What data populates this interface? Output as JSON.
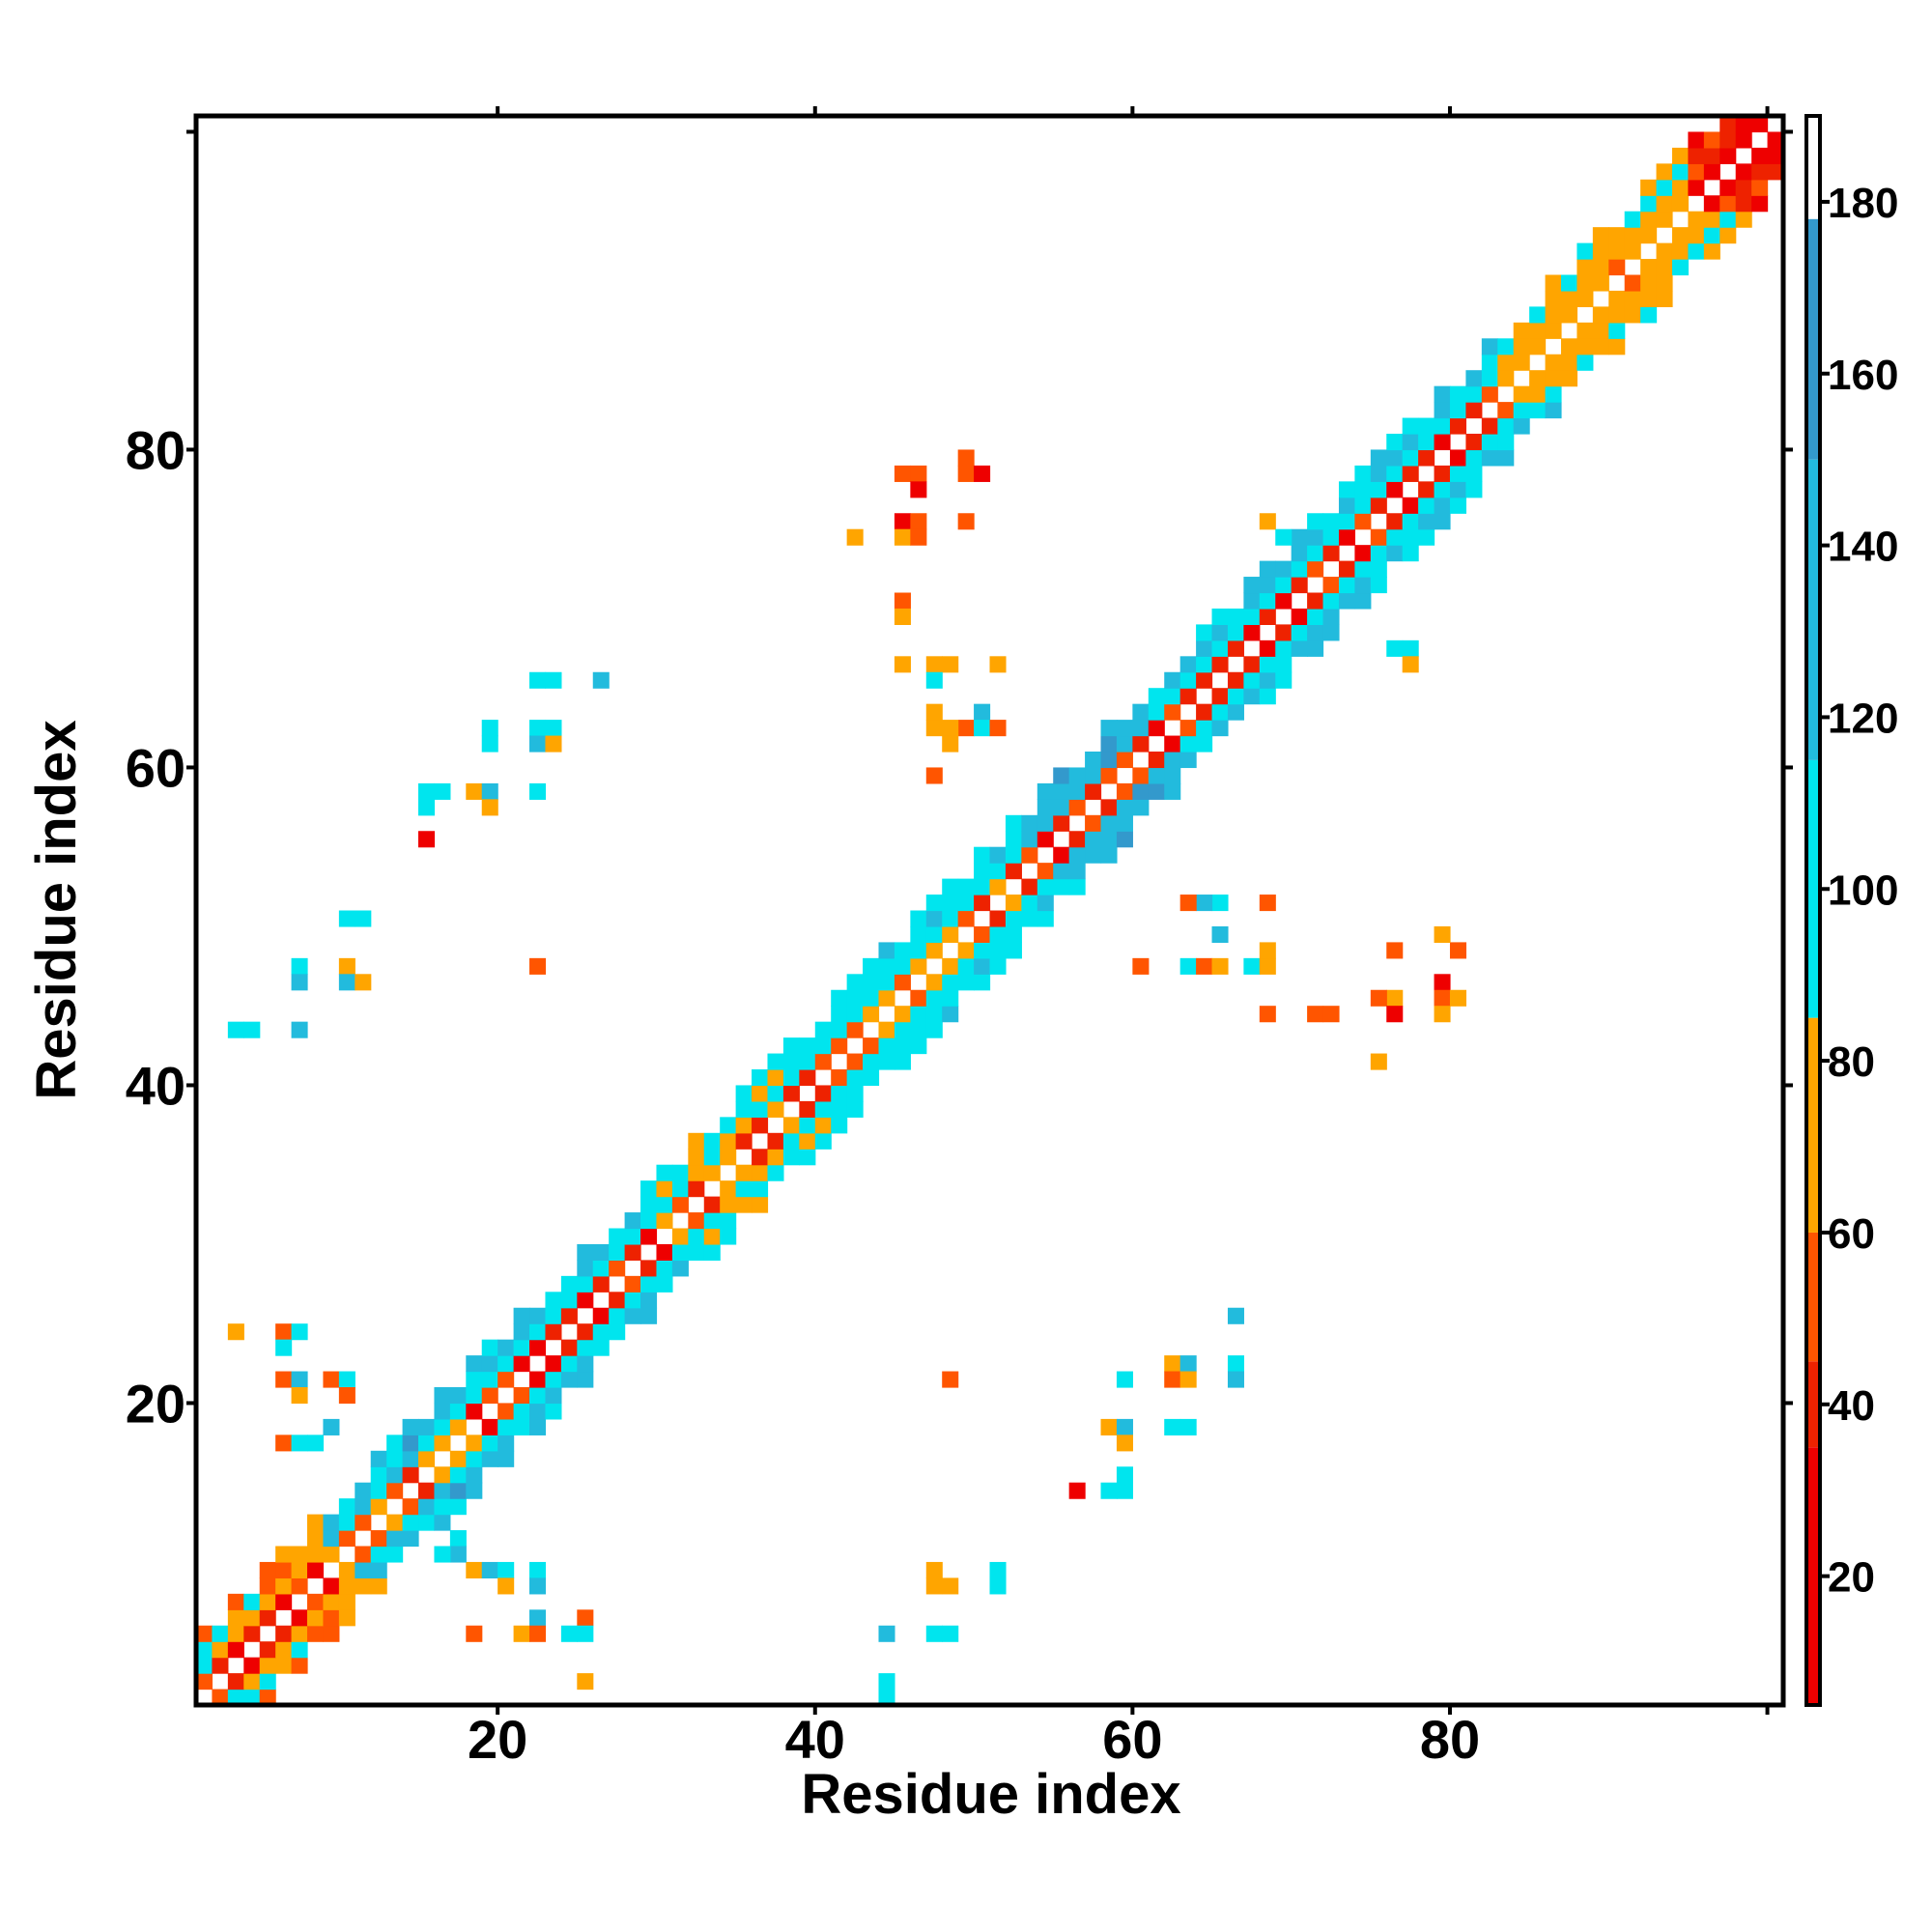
{
  "chart_data": {
    "type": "heatmap",
    "title": "",
    "xlabel": "Residue index",
    "ylabel": "Residue index",
    "xlim": [
      1,
      101
    ],
    "ylim": [
      1,
      101
    ],
    "x_ticks": [
      20,
      40,
      60,
      80
    ],
    "y_ticks": [
      20,
      40,
      60,
      80
    ],
    "colorbar": {
      "range": [
        5,
        190
      ],
      "ticks": [
        20,
        40,
        60,
        80,
        100,
        120,
        140,
        160,
        180
      ],
      "bands": [
        {
          "from": 5,
          "to": 35,
          "color": "#ee0000"
        },
        {
          "from": 35,
          "to": 45,
          "color": "#ee2200"
        },
        {
          "from": 45,
          "to": 60,
          "color": "#ff5500"
        },
        {
          "from": 60,
          "to": 85,
          "color": "#ffa500"
        },
        {
          "from": 85,
          "to": 115,
          "color": "#00e5ee"
        },
        {
          "from": 115,
          "to": 150,
          "color": "#22bbdd"
        },
        {
          "from": 150,
          "to": 178,
          "color": "#3399cc"
        },
        {
          "from": 178,
          "to": 190,
          "color": "#ffffff"
        }
      ]
    },
    "diagonal_bands": [
      {
        "from": 1,
        "to": 8,
        "near": [
          30,
          60
        ],
        "mid": [
          60,
          100
        ],
        "far": [
          45,
          110
        ]
      },
      {
        "from": 8,
        "to": 17,
        "near": [
          35,
          80
        ],
        "mid": [
          90,
          150
        ],
        "far": [
          100,
          155
        ]
      },
      {
        "from": 17,
        "to": 29,
        "near": [
          30,
          50
        ],
        "mid": [
          95,
          110
        ],
        "far": [
          100,
          130
        ]
      },
      {
        "from": 29,
        "to": 37,
        "near": [
          40,
          75
        ],
        "mid": [
          60,
          100
        ],
        "far": [
          60,
          110
        ]
      },
      {
        "from": 37,
        "to": 52,
        "near": [
          35,
          75
        ],
        "mid": [
          90,
          110
        ],
        "far": [
          80,
          120
        ]
      },
      {
        "from": 52,
        "to": 60,
        "near": [
          30,
          60
        ],
        "mid": [
          110,
          160
        ],
        "far": [
          120,
          160
        ]
      },
      {
        "from": 60,
        "to": 82,
        "near": [
          30,
          50
        ],
        "mid": [
          95,
          110
        ],
        "far": [
          100,
          130
        ]
      },
      {
        "from": 82,
        "to": 94,
        "near": [
          55,
          80
        ],
        "mid": [
          60,
          80
        ],
        "far": [
          70,
          100
        ]
      },
      {
        "from": 94,
        "to": 101,
        "near": [
          5,
          35
        ],
        "mid": [
          20,
          60
        ],
        "far": [
          30,
          60
        ]
      }
    ],
    "off_diagonal_contacts": [
      [
        26,
        65,
        142
      ],
      [
        22,
        65,
        105
      ],
      [
        23,
        65,
        105
      ],
      [
        22,
        62,
        85
      ],
      [
        23,
        62,
        105
      ],
      [
        22,
        61,
        125
      ],
      [
        23,
        61,
        80
      ],
      [
        19,
        62,
        100
      ],
      [
        19,
        61,
        100
      ],
      [
        15,
        58,
        100
      ],
      [
        16,
        58,
        100
      ],
      [
        15,
        57,
        100
      ],
      [
        18,
        58,
        60
      ],
      [
        19,
        58,
        120
      ],
      [
        19,
        57,
        70
      ],
      [
        22,
        58,
        100
      ],
      [
        15,
        55,
        10
      ],
      [
        10,
        50,
        100
      ],
      [
        11,
        50,
        100
      ],
      [
        7,
        47,
        100
      ],
      [
        7,
        46,
        120
      ],
      [
        10,
        47,
        70
      ],
      [
        10,
        46,
        120
      ],
      [
        11,
        46,
        80
      ],
      [
        22,
        47,
        45
      ],
      [
        3,
        43,
        100
      ],
      [
        4,
        43,
        100
      ],
      [
        7,
        43,
        125
      ],
      [
        45,
        78,
        50
      ],
      [
        46,
        78,
        50
      ],
      [
        46,
        77,
        10
      ],
      [
        49,
        79,
        55
      ],
      [
        49,
        78,
        45
      ],
      [
        50,
        78,
        10
      ],
      [
        45,
        75,
        10
      ],
      [
        46,
        75,
        50
      ],
      [
        45,
        74,
        70
      ],
      [
        46,
        74,
        50
      ],
      [
        42,
        74,
        60
      ],
      [
        49,
        75,
        45
      ],
      [
        45,
        70,
        50
      ],
      [
        45,
        69,
        70
      ],
      [
        45,
        66,
        60
      ],
      [
        47,
        66,
        70
      ],
      [
        48,
        66,
        70
      ],
      [
        51,
        66,
        60
      ],
      [
        47,
        65,
        110
      ],
      [
        50,
        63,
        130
      ],
      [
        47,
        63,
        60
      ],
      [
        49,
        62,
        50
      ],
      [
        50,
        62,
        100
      ],
      [
        48,
        62,
        60
      ],
      [
        47,
        62,
        70
      ],
      [
        48,
        61,
        80
      ],
      [
        51,
        62,
        50
      ],
      [
        47,
        59,
        45
      ],
      [
        68,
        75,
        70
      ],
      [
        69,
        74,
        100
      ],
      [
        76,
        67,
        100
      ],
      [
        77,
        67,
        100
      ],
      [
        77,
        66,
        80
      ],
      [
        68,
        51,
        45
      ],
      [
        65,
        51,
        100
      ],
      [
        64,
        51,
        130
      ],
      [
        63,
        51,
        50
      ],
      [
        67,
        47,
        100
      ],
      [
        68,
        47,
        60
      ],
      [
        68,
        48,
        70
      ],
      [
        76,
        48,
        45
      ],
      [
        80,
        48,
        50
      ],
      [
        79,
        49,
        60
      ],
      [
        79,
        46,
        10
      ],
      [
        76,
        45,
        60
      ],
      [
        75,
        45,
        50
      ],
      [
        79,
        45,
        50
      ],
      [
        80,
        45,
        60
      ],
      [
        76,
        44,
        10
      ],
      [
        79,
        44,
        60
      ],
      [
        68,
        44,
        45
      ],
      [
        71,
        44,
        50
      ],
      [
        72,
        44,
        45
      ],
      [
        75,
        41,
        60
      ],
      [
        65,
        49,
        125
      ],
      [
        60,
        47,
        45
      ],
      [
        63,
        47,
        100
      ],
      [
        64,
        47,
        45
      ],
      [
        65,
        47,
        70
      ],
      [
        3,
        24,
        70
      ],
      [
        6,
        24,
        50
      ],
      [
        7,
        24,
        100
      ],
      [
        6,
        23,
        100
      ],
      [
        6,
        21,
        50
      ],
      [
        7,
        21,
        125
      ],
      [
        7,
        20,
        70
      ],
      [
        9,
        21,
        50
      ],
      [
        10,
        21,
        100
      ],
      [
        10,
        20,
        50
      ],
      [
        6,
        17,
        45
      ],
      [
        7,
        17,
        100
      ],
      [
        8,
        17,
        100
      ],
      [
        9,
        18,
        125
      ],
      [
        66,
        25,
        140
      ],
      [
        62,
        22,
        70
      ],
      [
        63,
        22,
        125
      ],
      [
        62,
        21,
        45
      ],
      [
        63,
        21,
        70
      ],
      [
        66,
        22,
        100
      ],
      [
        66,
        21,
        125
      ],
      [
        59,
        21,
        100
      ],
      [
        58,
        18,
        70
      ],
      [
        59,
        18,
        125
      ],
      [
        59,
        17,
        70
      ],
      [
        62,
        18,
        100
      ],
      [
        63,
        18,
        100
      ],
      [
        59,
        15,
        100
      ],
      [
        56,
        14,
        10
      ],
      [
        58,
        14,
        100
      ],
      [
        59,
        14,
        100
      ],
      [
        48,
        21,
        45
      ],
      [
        47,
        9,
        70
      ],
      [
        47,
        8,
        70
      ],
      [
        48,
        8,
        70
      ],
      [
        51,
        9,
        100
      ],
      [
        51,
        8,
        100
      ],
      [
        47,
        5,
        100
      ],
      [
        48,
        5,
        100
      ],
      [
        44,
        5,
        125
      ],
      [
        44,
        2,
        100
      ],
      [
        44,
        1,
        100
      ],
      [
        18,
        9,
        70
      ],
      [
        19,
        9,
        120
      ],
      [
        20,
        9,
        100
      ],
      [
        22,
        9,
        100
      ],
      [
        20,
        8,
        60
      ],
      [
        22,
        8,
        120
      ],
      [
        22,
        6,
        120
      ],
      [
        21,
        5,
        60
      ],
      [
        22,
        5,
        45
      ],
      [
        25,
        6,
        45
      ],
      [
        25,
        5,
        100
      ],
      [
        24,
        5,
        100
      ],
      [
        18,
        5,
        45
      ],
      [
        25,
        2,
        70
      ],
      [
        17,
        11,
        100
      ],
      [
        17,
        10,
        120
      ],
      [
        16,
        10,
        100
      ]
    ]
  }
}
